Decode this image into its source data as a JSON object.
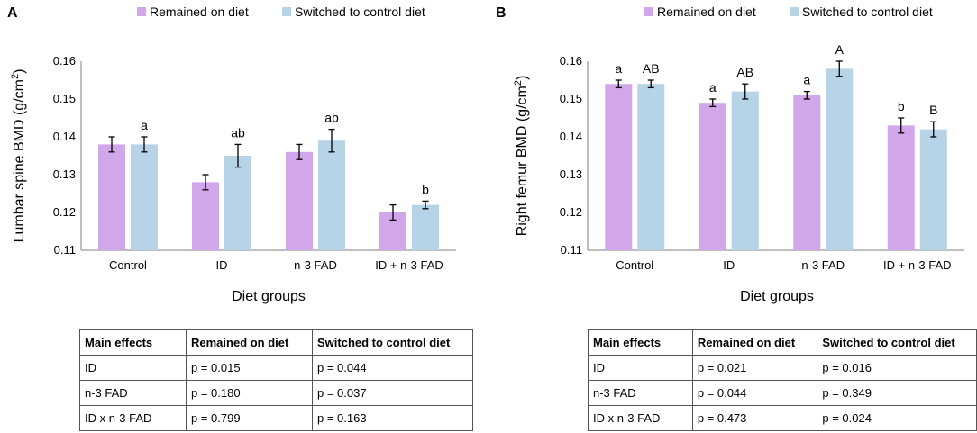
{
  "colors": {
    "remained": "#d2a6ea",
    "switched": "#b6d3e8",
    "axis": "#7f7f7f",
    "error": "#000000"
  },
  "chart_data": [
    {
      "type": "bar",
      "panel_label": "A",
      "categories": [
        "Control",
        "ID",
        "n-3 FAD",
        "ID + n-3 FAD"
      ],
      "series": [
        {
          "name": "Remained on diet",
          "values": [
            0.138,
            0.128,
            0.136,
            0.12
          ],
          "errors": [
            0.002,
            0.002,
            0.002,
            0.002
          ],
          "letters": [
            "",
            "",
            "",
            ""
          ]
        },
        {
          "name": "Switched to control diet",
          "values": [
            0.138,
            0.135,
            0.139,
            0.122
          ],
          "errors": [
            0.002,
            0.003,
            0.003,
            0.001
          ],
          "letters": [
            "a",
            "ab",
            "ab",
            "b"
          ]
        }
      ],
      "ylabel_main": "Lumbar spine BMD (g/cm",
      "ylabel_sup": "2",
      "ylabel_end": ")",
      "xlabel": "Diet groups",
      "ylim": [
        0.11,
        0.16
      ],
      "yticks": [
        "0.11",
        "0.12",
        "0.13",
        "0.14",
        "0.15",
        "0.16"
      ],
      "legend_position": "top"
    },
    {
      "type": "bar",
      "panel_label": "B",
      "categories": [
        "Control",
        "ID",
        "n-3 FAD",
        "ID + n-3 FAD"
      ],
      "series": [
        {
          "name": "Remained on diet",
          "values": [
            0.154,
            0.149,
            0.151,
            0.143
          ],
          "errors": [
            0.001,
            0.001,
            0.001,
            0.002
          ],
          "letters": [
            "a",
            "a",
            "a",
            "b"
          ]
        },
        {
          "name": "Switched to control diet",
          "values": [
            0.154,
            0.152,
            0.158,
            0.142
          ],
          "errors": [
            0.001,
            0.002,
            0.002,
            0.002
          ],
          "letters": [
            "AB",
            "AB",
            "A",
            "B"
          ]
        }
      ],
      "ylabel_main": "Right femur BMD (g/cm",
      "ylabel_sup": "2",
      "ylabel_end": ")",
      "xlabel": "Diet groups",
      "ylim": [
        0.11,
        0.16
      ],
      "yticks": [
        "0.11",
        "0.12",
        "0.13",
        "0.14",
        "0.15",
        "0.16"
      ],
      "legend_position": "top"
    }
  ],
  "tables": [
    {
      "headers": [
        "Main effects",
        "Remained on diet",
        "Switched to control diet"
      ],
      "rows": [
        [
          "ID",
          "p = 0.015",
          "p = 0.044"
        ],
        [
          "n-3 FAD",
          "p = 0.180",
          "p = 0.037"
        ],
        [
          "ID x n-3 FAD",
          "p = 0.799",
          "p = 0.163"
        ]
      ]
    },
    {
      "headers": [
        "Main effects",
        "Remained on diet",
        "Switched to control diet"
      ],
      "rows": [
        [
          "ID",
          "p = 0.021",
          "p = 0.016"
        ],
        [
          "n-3 FAD",
          "p = 0.044",
          "p = 0.349"
        ],
        [
          "ID x n-3 FAD",
          "p = 0.473",
          "p = 0.024"
        ]
      ]
    }
  ]
}
